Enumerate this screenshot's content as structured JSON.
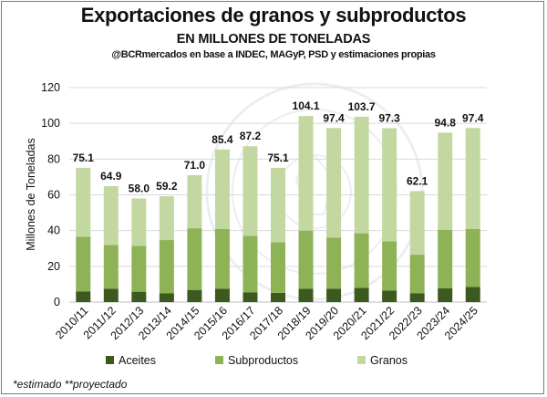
{
  "chart_data": {
    "type": "bar",
    "stacked": true,
    "title": "Exportaciones de granos y subproductos",
    "subtitle": "EN MILLONES DE TONELADAS",
    "source": "@BCRmercados en base a INDEC, MAGyP, PSD y estimaciones propias",
    "ylabel": "Millones de Toneladas",
    "xlabel": "",
    "ylim": [
      0,
      120
    ],
    "yticks": [
      0,
      20,
      40,
      60,
      80,
      100,
      120
    ],
    "grid": true,
    "legend_position": "bottom",
    "categories": [
      "2010/11",
      "2011/12",
      "2012/13",
      "2013/14",
      "2014/15",
      "2015/16",
      "2016/17",
      "2017/18",
      "2018/19",
      "2019/20",
      "2020/21",
      "2021/22",
      "2022/23",
      "2023/24",
      "2024/25"
    ],
    "series": [
      {
        "name": "Aceites",
        "color": "#3d5a1e",
        "values": [
          6.0,
          7.5,
          5.8,
          5.0,
          6.8,
          7.5,
          5.5,
          5.2,
          7.5,
          7.5,
          8.0,
          6.5,
          5.0,
          7.7,
          8.5
        ]
      },
      {
        "name": "Subproductos",
        "color": "#8db356",
        "values": [
          30.5,
          24.5,
          25.7,
          29.7,
          34.5,
          33.5,
          31.5,
          28.3,
          32.5,
          28.5,
          30.5,
          27.5,
          21.5,
          32.8,
          32.5
        ]
      },
      {
        "name": "Granos",
        "color": "#c3d8a0",
        "values": [
          38.6,
          32.9,
          26.5,
          24.5,
          29.7,
          44.4,
          50.2,
          41.6,
          64.1,
          61.4,
          65.2,
          63.3,
          35.6,
          54.3,
          56.4
        ]
      }
    ],
    "totals": [
      75.1,
      64.9,
      58.0,
      59.2,
      71.0,
      85.4,
      87.2,
      75.1,
      104.1,
      97.4,
      103.7,
      97.3,
      62.1,
      94.8,
      97.4
    ],
    "total_labels": [
      "75.1",
      "64.9",
      "58.0",
      "59.2",
      "71.0",
      "85.4",
      "87.2",
      "75.1",
      "104.1",
      "97.4",
      "103.7",
      "97.3",
      "62.1",
      "94.8",
      "97.4"
    ]
  },
  "footnote": "*estimado **proyectado"
}
